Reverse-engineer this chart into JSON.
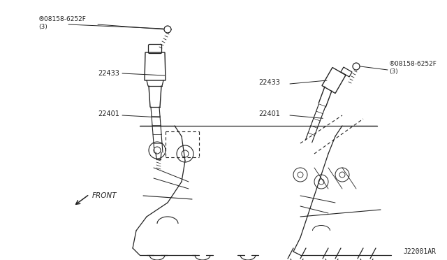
{
  "bg_color": "#ffffff",
  "line_color": "#222222",
  "text_color": "#222222",
  "labels": {
    "bolt_left": "®08158-6252F\n(3)",
    "bolt_right": "®08158-6252F\n(3)",
    "coil_left": "22433",
    "coil_right": "22433",
    "plug_left": "22401",
    "plug_right": "22401",
    "front": "FRONT",
    "diagram_id": "J22001AR"
  },
  "fig_width": 6.4,
  "fig_height": 3.72,
  "dpi": 100
}
